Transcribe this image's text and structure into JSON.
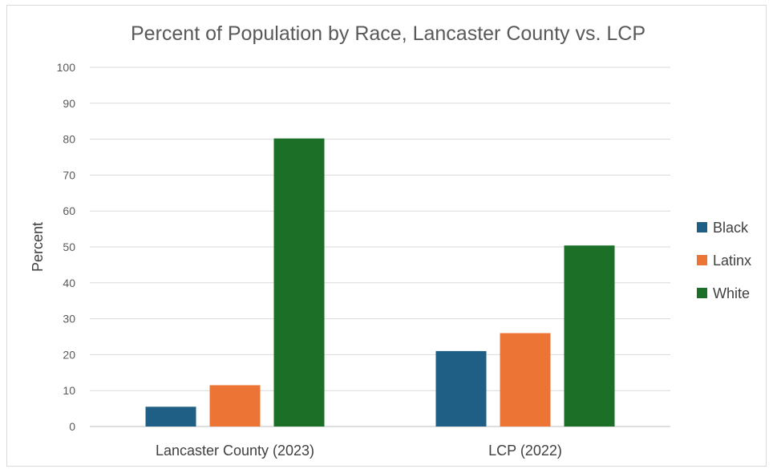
{
  "chart_data": {
    "type": "bar",
    "title": "Percent of  Population by Race, Lancaster County vs. LCP",
    "xlabel": "",
    "ylabel": "Percent",
    "ylim": [
      0,
      100
    ],
    "yticks": [
      "0",
      "10",
      "20",
      "30",
      "40",
      "50",
      "60",
      "70",
      "80",
      "90",
      "100"
    ],
    "grid": true,
    "legend_position": "right",
    "categories": [
      "Lancaster County (2023)",
      "LCP (2022)"
    ],
    "series": [
      {
        "name": "Black",
        "color": "#1f5f85",
        "values": [
          5.5,
          21
        ]
      },
      {
        "name": "Latinx",
        "color": "#ec7434",
        "values": [
          11.5,
          26
        ]
      },
      {
        "name": "White",
        "color": "#1b6f27",
        "values": [
          80.2,
          50.4
        ]
      }
    ]
  }
}
